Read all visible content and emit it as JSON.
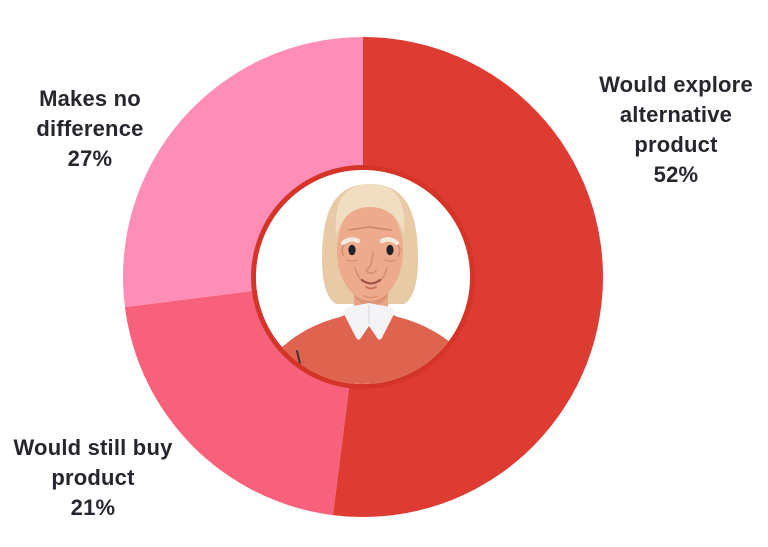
{
  "chart_data": {
    "type": "pie",
    "subtype": "donut",
    "title": "",
    "start_angle_deg": 0,
    "direction": "clockwise",
    "legend": "none",
    "labels_position": "outside",
    "center_decoration": "elderly-woman-avatar",
    "segments": [
      {
        "label": "Would explore alternative product",
        "value": 52,
        "color": "#DE3B32"
      },
      {
        "label": "Would still buy product",
        "value": 21,
        "color": "#F7617B"
      },
      {
        "label": "Makes no difference",
        "value": 27,
        "color": "#FE8DB8"
      }
    ]
  },
  "labels": {
    "would_explore": "Would explore\nalternative\nproduct\n52%",
    "makes_no_difference": "Makes no\ndifference\n27%",
    "would_still_buy": "Would still buy\nproduct\n21%"
  },
  "colors": {
    "background": "#FFFFFF",
    "label_text": "#26262E",
    "ring": "#D53529",
    "center_fill": "#FFFFFF"
  }
}
